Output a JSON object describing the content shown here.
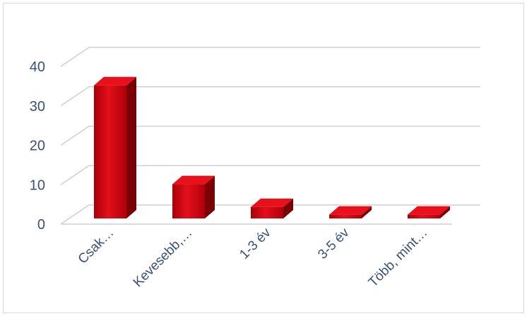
{
  "chart_data": {
    "type": "bar",
    "categories": [
      "Csak…",
      "Kevesebb,…",
      "1-3 év",
      "3-5 év",
      "Több, mint…"
    ],
    "values": [
      35,
      9,
      3,
      1,
      1
    ],
    "ylim": [
      0,
      40
    ],
    "yticks": [
      0,
      10,
      20,
      30,
      40
    ],
    "grid": true,
    "bar_color": "#c8000a",
    "bar_color_light": "#e8101a",
    "bar_color_dark": "#7a0006",
    "axis_text_color": "#3a4f7a"
  }
}
